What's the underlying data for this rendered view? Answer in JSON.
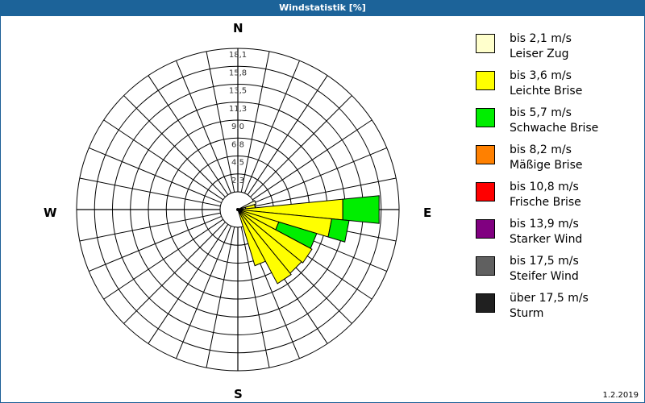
{
  "window": {
    "title": "Windstatistik [%]"
  },
  "footer": {
    "date": "1.2.2019"
  },
  "compass": {
    "north": "N",
    "east": "E",
    "south": "S",
    "west": "W"
  },
  "legend": [
    {
      "range": "bis 2,1 m/s",
      "name": "Leiser Zug",
      "color": "#ffffcc"
    },
    {
      "range": "bis 3,6 m/s",
      "name": "Leichte Brise",
      "color": "#ffff00"
    },
    {
      "range": "bis 5,7 m/s",
      "name": "Schwache Brise",
      "color": "#00ee00"
    },
    {
      "range": "bis 8,2 m/s",
      "name": "Mäßige Brise",
      "color": "#ff8000"
    },
    {
      "range": "bis 10,8 m/s",
      "name": "Frische Brise",
      "color": "#ff0000"
    },
    {
      "range": "bis 13,9 m/s",
      "name": "Starker Wind",
      "color": "#800080"
    },
    {
      "range": "bis 17,5 m/s",
      "name": "Steifer Wind",
      "color": "#606060"
    },
    {
      "range": "über 17,5 m/s",
      "name": "Sturm",
      "color": "#202020"
    }
  ],
  "chart_data": {
    "type": "polar-bar (wind rose)",
    "title": "Windstatistik [%]",
    "radial_unit": "%",
    "radial_ticks": [
      "2,3",
      "4,5",
      "6,8",
      "9,0",
      "11,3",
      "13,5",
      "15,8",
      "18,1"
    ],
    "radial_max": 18.1,
    "sectors": 32,
    "sector_width_deg": 11.25,
    "direction_labels": [
      "N",
      "E",
      "S",
      "W"
    ],
    "series_names": [
      "bis 2,1 m/s",
      "bis 3,6 m/s",
      "bis 5,7 m/s"
    ],
    "data": [
      {
        "angle": 67.5,
        "cumulative": [
          2.4,
          2.4,
          2.4
        ]
      },
      {
        "angle": 78.75,
        "cumulative": [
          1.0,
          2.2,
          2.2
        ]
      },
      {
        "angle": 90.0,
        "cumulative": [
          0.6,
          13.3,
          17.9
        ]
      },
      {
        "angle": 101.25,
        "cumulative": [
          0.3,
          11.9,
          14.1
        ]
      },
      {
        "angle": 112.5,
        "cumulative": [
          0.2,
          5.4,
          10.4
        ]
      },
      {
        "angle": 123.75,
        "cumulative": [
          0.2,
          10.6,
          10.6
        ]
      },
      {
        "angle": 135.0,
        "cumulative": [
          0.2,
          10.4,
          10.4
        ]
      },
      {
        "angle": 146.25,
        "cumulative": [
          0.2,
          10.6,
          10.6
        ]
      },
      {
        "angle": 157.5,
        "cumulative": [
          0.2,
          7.4,
          7.4
        ]
      }
    ]
  }
}
